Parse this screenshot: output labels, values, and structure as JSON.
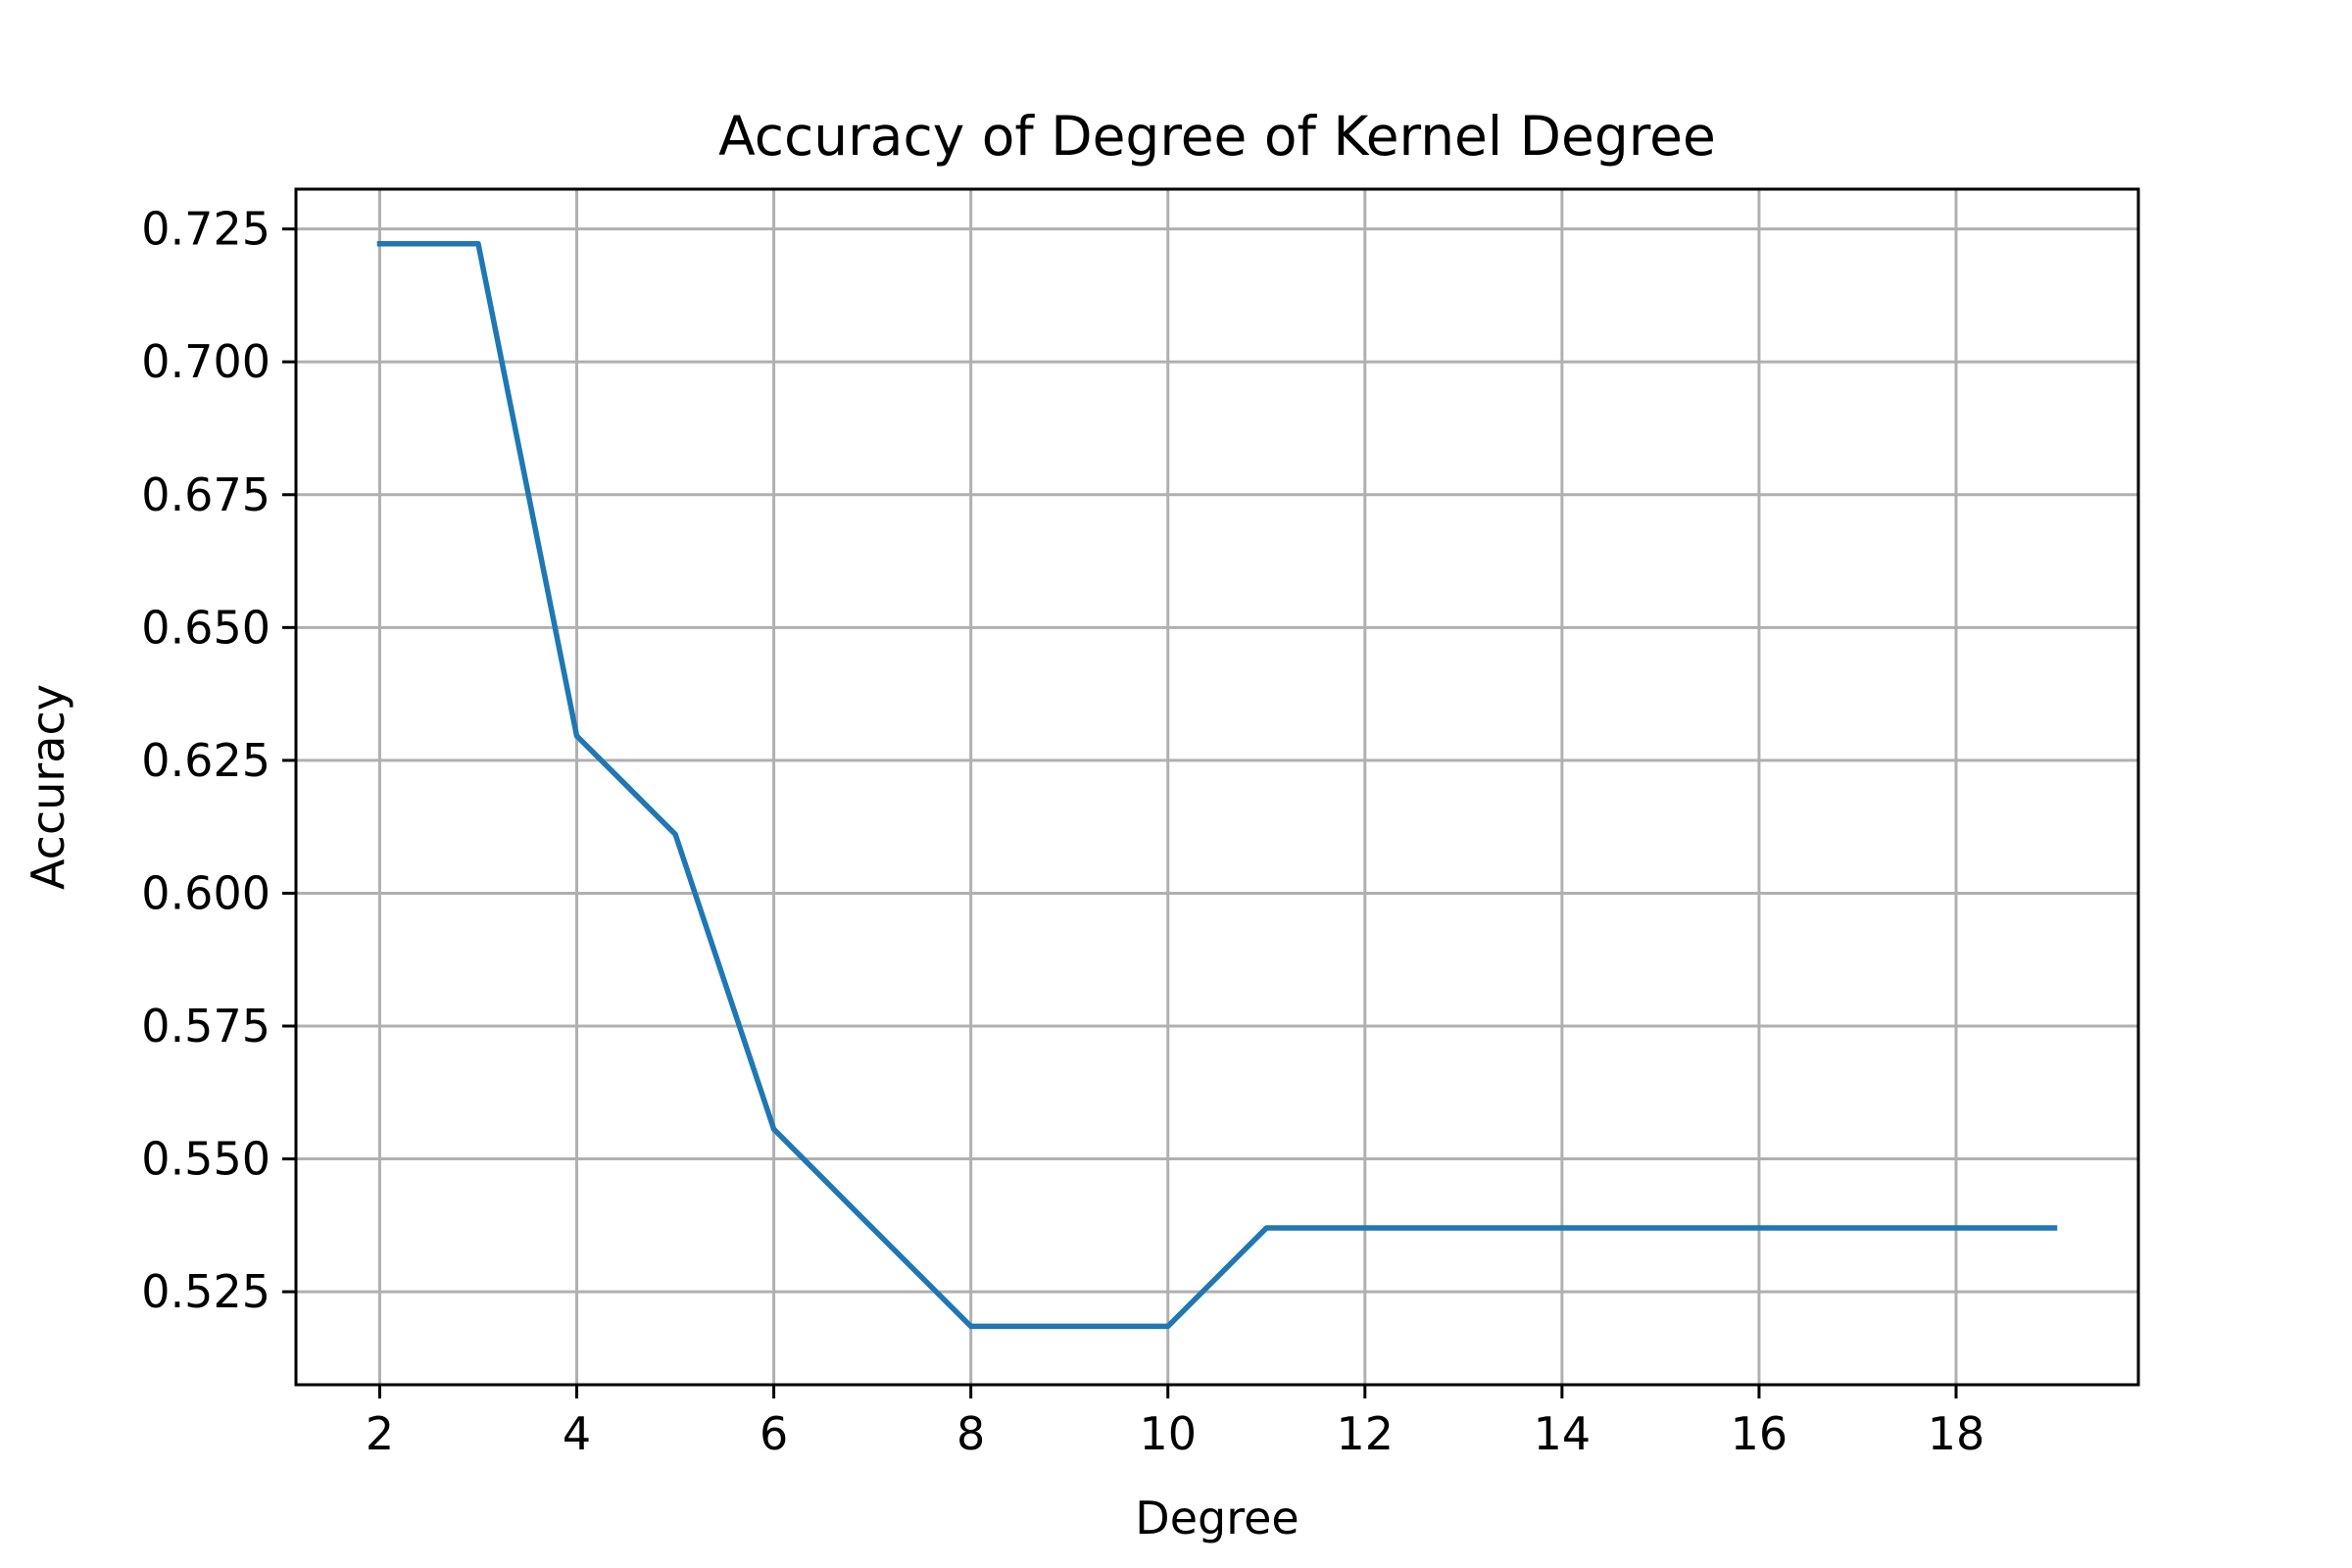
{
  "chart_data": {
    "type": "line",
    "title": "Accuracy of Degree of Kernel Degree",
    "xlabel": "Degree",
    "ylabel": "Accuracy",
    "xlim": [
      1.15,
      19.85
    ],
    "ylim": [
      0.5075,
      0.7325
    ],
    "xticks": [
      2,
      4,
      6,
      8,
      10,
      12,
      14,
      16,
      18
    ],
    "xtick_labels": [
      "2",
      "4",
      "6",
      "8",
      "10",
      "12",
      "14",
      "16",
      "18"
    ],
    "yticks": [
      0.525,
      0.55,
      0.575,
      0.6,
      0.625,
      0.65,
      0.675,
      0.7,
      0.725
    ],
    "ytick_labels": [
      "0.525",
      "0.550",
      "0.575",
      "0.600",
      "0.625",
      "0.650",
      "0.675",
      "0.700",
      "0.725"
    ],
    "grid": true,
    "legend": "none",
    "line_color": "#1f77b4",
    "grid_color": "#b0b0b0",
    "series": [
      {
        "x": [
          2,
          3,
          4,
          5,
          6,
          7,
          8,
          9,
          10,
          11,
          12,
          13,
          14,
          15,
          16,
          17,
          18,
          19
        ],
        "values": [
          0.7222,
          0.7222,
          0.6296,
          0.6111,
          0.5556,
          0.537,
          0.5185,
          0.5185,
          0.5185,
          0.537,
          0.537,
          0.537,
          0.537,
          0.537,
          0.537,
          0.537,
          0.537,
          0.537
        ]
      }
    ]
  }
}
